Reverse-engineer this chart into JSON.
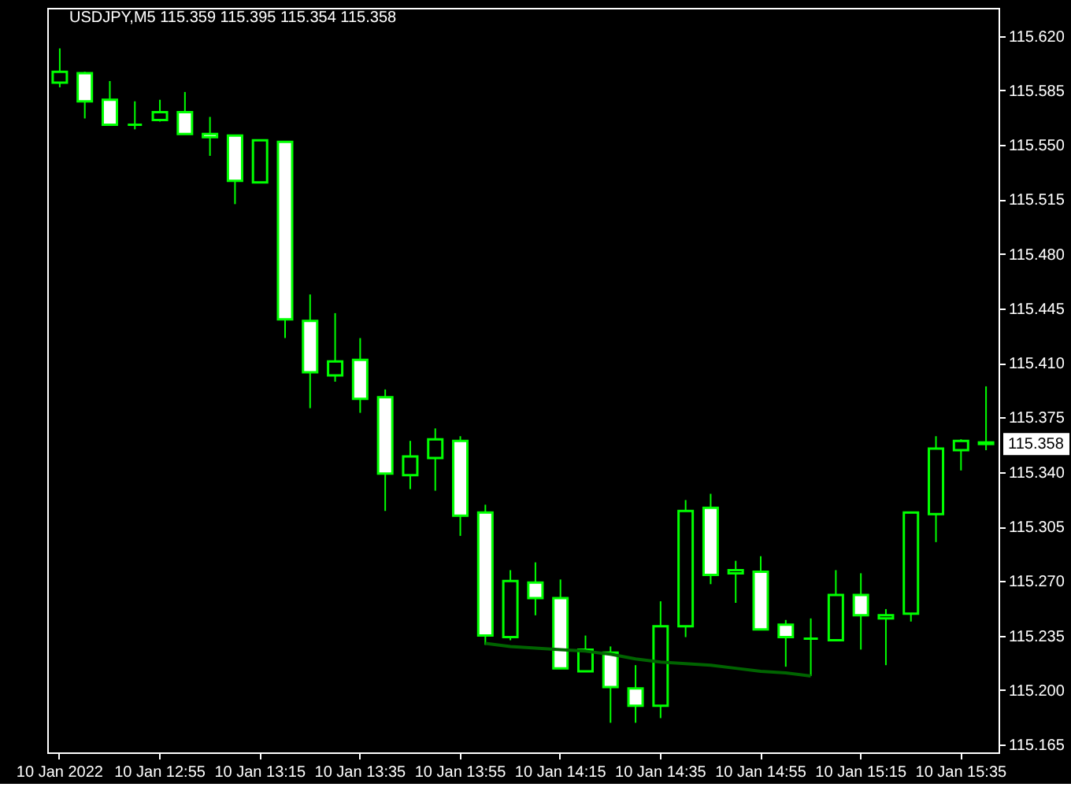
{
  "chart_data": {
    "type": "candlestick",
    "title": "USDJPY,M5  115.359 115.395 115.354 115.358",
    "categories": [
      "10 Jan 2022",
      null,
      null,
      null,
      "10 Jan 12:55",
      null,
      null,
      null,
      "10 Jan 13:15",
      null,
      null,
      null,
      "10 Jan 13:35",
      null,
      null,
      null,
      "10 Jan 13:55",
      null,
      null,
      null,
      "10 Jan 14:15",
      null,
      null,
      null,
      "10 Jan 14:35",
      null,
      null,
      null,
      "10 Jan 14:55",
      null,
      null,
      null,
      "10 Jan 15:15",
      null,
      null,
      null,
      "10 Jan 15:35",
      null
    ],
    "ohlc": [
      [
        115.59,
        115.612,
        115.587,
        115.597
      ],
      [
        115.596,
        115.597,
        115.567,
        115.578
      ],
      [
        115.579,
        115.591,
        115.563,
        115.563
      ],
      [
        115.563,
        115.578,
        115.56,
        115.563
      ],
      [
        115.566,
        115.579,
        115.565,
        115.571
      ],
      [
        115.571,
        115.584,
        115.557,
        115.557
      ],
      [
        115.557,
        115.568,
        115.543,
        115.555
      ],
      [
        115.556,
        115.556,
        115.512,
        115.527
      ],
      [
        115.526,
        115.553,
        115.526,
        115.553
      ],
      [
        115.552,
        115.552,
        115.426,
        115.438
      ],
      [
        115.437,
        115.454,
        115.381,
        115.404
      ],
      [
        115.402,
        115.442,
        115.398,
        115.411
      ],
      [
        115.412,
        115.426,
        115.378,
        115.387
      ],
      [
        115.388,
        115.393,
        115.315,
        115.339
      ],
      [
        115.338,
        115.36,
        115.329,
        115.35
      ],
      [
        115.349,
        115.368,
        115.328,
        115.361
      ],
      [
        115.36,
        115.363,
        115.299,
        115.312
      ],
      [
        115.314,
        115.319,
        115.229,
        115.235
      ],
      [
        115.234,
        115.277,
        115.232,
        115.27
      ],
      [
        115.269,
        115.282,
        115.248,
        115.259
      ],
      [
        115.259,
        115.271,
        115.214,
        115.214
      ],
      [
        115.212,
        115.235,
        115.212,
        115.226
      ],
      [
        115.224,
        115.228,
        115.179,
        115.202
      ],
      [
        115.201,
        115.216,
        115.179,
        115.19
      ],
      [
        115.19,
        115.257,
        115.182,
        115.241
      ],
      [
        115.241,
        115.322,
        115.234,
        115.315
      ],
      [
        115.317,
        115.326,
        115.268,
        115.274
      ],
      [
        115.275,
        115.283,
        115.256,
        115.277
      ],
      [
        115.276,
        115.286,
        115.239,
        115.239
      ],
      [
        115.242,
        115.245,
        115.215,
        115.234
      ],
      [
        115.233,
        115.246,
        115.209,
        115.233
      ],
      [
        115.232,
        115.277,
        115.232,
        115.261
      ],
      [
        115.261,
        115.275,
        115.226,
        115.248
      ],
      [
        115.246,
        115.252,
        115.216,
        115.248
      ],
      [
        115.249,
        115.314,
        115.244,
        115.314
      ],
      [
        115.313,
        115.363,
        115.295,
        115.355
      ],
      [
        115.354,
        115.361,
        115.341,
        115.36
      ],
      [
        115.359,
        115.395,
        115.354,
        115.358
      ]
    ],
    "color": "#00ff00",
    "colors": [
      "#000000",
      "#ffffff",
      "#ffffff",
      "#00ff00",
      "#000000",
      "#ffffff",
      "#ffffff",
      "#ffffff",
      "#000000",
      "#ffffff",
      "#ffffff",
      "#000000",
      "#ffffff",
      "#ffffff",
      "#000000",
      "#000000",
      "#ffffff",
      "#ffffff",
      "#000000",
      "#ffffff",
      "#ffffff",
      "#000000",
      "#ffffff",
      "#ffffff",
      "#000000",
      "#000000",
      "#ffffff",
      "#000000",
      "#ffffff",
      "#ffffff",
      "#00ff00",
      "#000000",
      "#ffffff",
      "#000000",
      "#000000",
      "#000000",
      "#000000",
      "#ffffff"
    ],
    "series": [
      {
        "type": "line",
        "color": "#006400",
        "values": [
          null,
          null,
          null,
          null,
          null,
          null,
          null,
          null,
          null,
          null,
          null,
          null,
          null,
          null,
          null,
          null,
          null,
          115.23,
          115.228,
          115.227,
          115.226,
          115.225,
          115.223,
          115.22,
          115.218,
          115.217,
          115.216,
          115.214,
          115.212,
          115.211,
          115.209,
          null,
          null,
          null,
          null,
          null,
          null,
          null
        ]
      }
    ],
    "ylim": [
      115.16,
      115.638
    ],
    "yticks": [
      115.165,
      {
        "value": 115.2,
        "label": "115.200"
      },
      115.235,
      {
        "value": 115.27,
        "label": "115.270"
      },
      115.305,
      {
        "value": 115.34,
        "label": "115.340"
      },
      115.375,
      {
        "value": 115.41,
        "label": "115.410"
      },
      115.445,
      {
        "value": 115.48,
        "label": "115.480"
      },
      115.515,
      {
        "value": 115.55,
        "label": "115.550"
      },
      115.585,
      {
        "value": 115.62,
        "label": "115.620"
      }
    ],
    "annotations": [
      {
        "text": "115.358",
        "y": 115.358
      }
    ]
  }
}
